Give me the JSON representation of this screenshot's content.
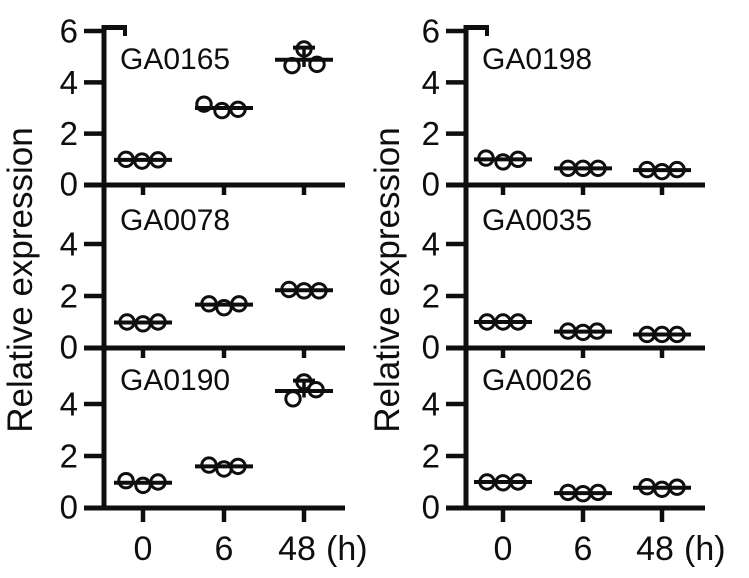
{
  "chart_data": {
    "type": "scatter",
    "title": "",
    "ylabel": "Relative expression",
    "xlabel_unit": "(h)",
    "x_categories": [
      "0",
      "6",
      "48"
    ],
    "ylim": [
      0,
      6
    ],
    "yticks": [
      0,
      2,
      4,
      6
    ],
    "ytick_labels_top_panel": [
      "6",
      "4",
      "2",
      "0"
    ],
    "ytick_labels_lower_panels": [
      "4",
      "2",
      "0"
    ],
    "grid": false,
    "legend": "none",
    "marker": "open-circle",
    "ink_color": "#0e0e0e",
    "background_color": "#ffffff",
    "columns": [
      {
        "panels": [
          {
            "gene": "GA0165",
            "points": [
              {
                "t": "0",
                "pts": [
                  [
                    -17,
                    1.0
                  ],
                  [
                    -1,
                    0.93
                  ],
                  [
                    15,
                    0.98
                  ]
                ],
                "mean": 0.98
              },
              {
                "t": "6",
                "pts": [
                  [
                    -20,
                    3.15
                  ],
                  [
                    -2,
                    2.9
                  ],
                  [
                    14,
                    2.95
                  ]
                ],
                "mean": 3.0
              },
              {
                "t": "48",
                "pts": [
                  [
                    -12,
                    4.65
                  ],
                  [
                    0,
                    5.3
                  ],
                  [
                    13,
                    4.7
                  ]
                ],
                "mean": 4.88,
                "whisker": [
                  4.6,
                  5.35
                ]
              }
            ]
          },
          {
            "gene": "GA0078",
            "points": [
              {
                "t": "0",
                "pts": [
                  [
                    -16,
                    1.0
                  ],
                  [
                    0,
                    0.93
                  ],
                  [
                    15,
                    1.0
                  ]
                ],
                "mean": 0.98
              },
              {
                "t": "6",
                "pts": [
                  [
                    -15,
                    1.7
                  ],
                  [
                    0,
                    1.55
                  ],
                  [
                    15,
                    1.7
                  ]
                ],
                "mean": 1.67
              },
              {
                "t": "48",
                "pts": [
                  [
                    -15,
                    2.25
                  ],
                  [
                    0,
                    2.2
                  ],
                  [
                    15,
                    2.2
                  ]
                ],
                "mean": 2.22
              }
            ]
          },
          {
            "gene": "GA0190",
            "points": [
              {
                "t": "0",
                "pts": [
                  [
                    -17,
                    1.05
                  ],
                  [
                    0,
                    0.87
                  ],
                  [
                    15,
                    1.0
                  ]
                ],
                "mean": 0.97
              },
              {
                "t": "6",
                "pts": [
                  [
                    -15,
                    1.65
                  ],
                  [
                    0,
                    1.5
                  ],
                  [
                    14,
                    1.6
                  ]
                ],
                "mean": 1.6
              },
              {
                "t": "48",
                "pts": [
                  [
                    -11,
                    4.2
                  ],
                  [
                    0,
                    4.85
                  ],
                  [
                    12,
                    4.55
                  ]
                ],
                "mean": 4.5,
                "whisker": [
                  4.25,
                  4.9
                ]
              }
            ]
          }
        ]
      },
      {
        "panels": [
          {
            "gene": "GA0198",
            "points": [
              {
                "t": "0",
                "pts": [
                  [
                    -17,
                    1.05
                  ],
                  [
                    0,
                    0.9
                  ],
                  [
                    15,
                    1.0
                  ]
                ],
                "mean": 1.0
              },
              {
                "t": "6",
                "pts": [
                  [
                    -15,
                    0.65
                  ],
                  [
                    0,
                    0.65
                  ],
                  [
                    15,
                    0.65
                  ]
                ],
                "mean": 0.65
              },
              {
                "t": "48",
                "pts": [
                  [
                    -15,
                    0.6
                  ],
                  [
                    0,
                    0.52
                  ],
                  [
                    15,
                    0.6
                  ]
                ],
                "mean": 0.58
              }
            ]
          },
          {
            "gene": "GA0035",
            "points": [
              {
                "t": "0",
                "pts": [
                  [
                    -16,
                    1.0
                  ],
                  [
                    0,
                    1.0
                  ],
                  [
                    15,
                    1.0
                  ]
                ],
                "mean": 1.0
              },
              {
                "t": "6",
                "pts": [
                  [
                    -15,
                    0.65
                  ],
                  [
                    0,
                    0.6
                  ],
                  [
                    14,
                    0.65
                  ]
                ],
                "mean": 0.63
              },
              {
                "t": "48",
                "pts": [
                  [
                    -15,
                    0.52
                  ],
                  [
                    0,
                    0.52
                  ],
                  [
                    15,
                    0.52
                  ]
                ],
                "mean": 0.52
              }
            ]
          },
          {
            "gene": "GA0026",
            "points": [
              {
                "t": "0",
                "pts": [
                  [
                    -16,
                    1.0
                  ],
                  [
                    0,
                    0.97
                  ],
                  [
                    15,
                    1.0
                  ]
                ],
                "mean": 1.0
              },
              {
                "t": "6",
                "pts": [
                  [
                    -15,
                    0.6
                  ],
                  [
                    0,
                    0.55
                  ],
                  [
                    15,
                    0.6
                  ]
                ],
                "mean": 0.57
              },
              {
                "t": "48",
                "pts": [
                  [
                    -15,
                    0.82
                  ],
                  [
                    0,
                    0.72
                  ],
                  [
                    15,
                    0.8
                  ]
                ],
                "mean": 0.78
              }
            ]
          }
        ]
      }
    ]
  }
}
